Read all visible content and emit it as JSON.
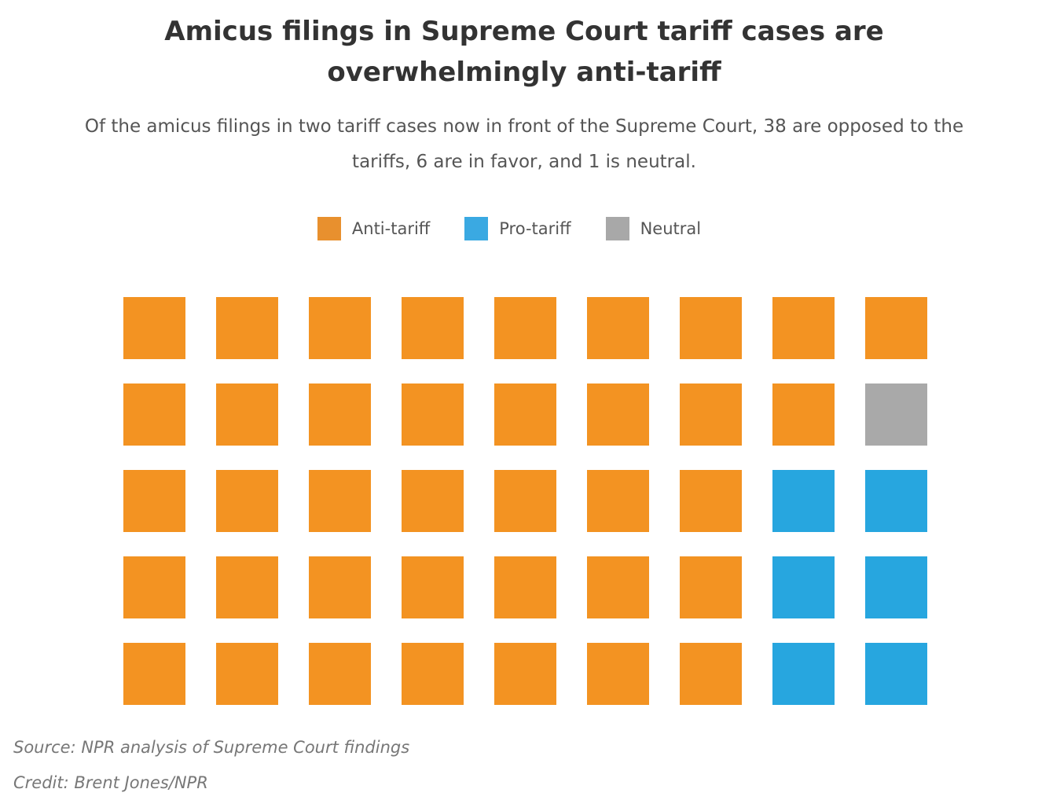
{
  "title_line1": "Amicus filings in Supreme Court tariff cases are",
  "title_line2": "overwhelmingly anti-tariff",
  "subtitle_line1": "Of the amicus filings in two tariff cases now in front of the Supreme Court, 38 are opposed to the",
  "subtitle_line2": "tariffs, 6 are in favor, and 1 is neutral.",
  "legend": [
    {
      "label": "Anti-tariff",
      "color": "#e8902e"
    },
    {
      "label": "Pro-tariff",
      "color": "#3aa9e2"
    },
    {
      "label": "Neutral",
      "color": "#a8a8a8"
    }
  ],
  "chart_data": {
    "type": "waffle",
    "title": "Amicus filings in Supreme Court tariff cases are overwhelmingly anti-tariff",
    "categories": [
      "Anti-tariff",
      "Pro-tariff",
      "Neutral"
    ],
    "values": [
      38,
      6,
      1
    ],
    "total": 45,
    "rows": 5,
    "columns": 9,
    "colors": {
      "Anti-tariff": "#f39322",
      "Pro-tariff": "#27a6df",
      "Neutral": "#a9a9a9"
    },
    "grid": [
      [
        "Anti-tariff",
        "Anti-tariff",
        "Anti-tariff",
        "Anti-tariff",
        "Anti-tariff",
        "Anti-tariff",
        "Anti-tariff",
        "Anti-tariff",
        "Anti-tariff"
      ],
      [
        "Anti-tariff",
        "Anti-tariff",
        "Anti-tariff",
        "Anti-tariff",
        "Anti-tariff",
        "Anti-tariff",
        "Anti-tariff",
        "Anti-tariff",
        "Neutral"
      ],
      [
        "Anti-tariff",
        "Anti-tariff",
        "Anti-tariff",
        "Anti-tariff",
        "Anti-tariff",
        "Anti-tariff",
        "Anti-tariff",
        "Pro-tariff",
        "Pro-tariff"
      ],
      [
        "Anti-tariff",
        "Anti-tariff",
        "Anti-tariff",
        "Anti-tariff",
        "Anti-tariff",
        "Anti-tariff",
        "Anti-tariff",
        "Pro-tariff",
        "Pro-tariff"
      ],
      [
        "Anti-tariff",
        "Anti-tariff",
        "Anti-tariff",
        "Anti-tariff",
        "Anti-tariff",
        "Anti-tariff",
        "Anti-tariff",
        "Pro-tariff",
        "Pro-tariff"
      ]
    ]
  },
  "source": "Source: NPR analysis of Supreme Court findings",
  "credit": "Credit: Brent Jones/NPR"
}
